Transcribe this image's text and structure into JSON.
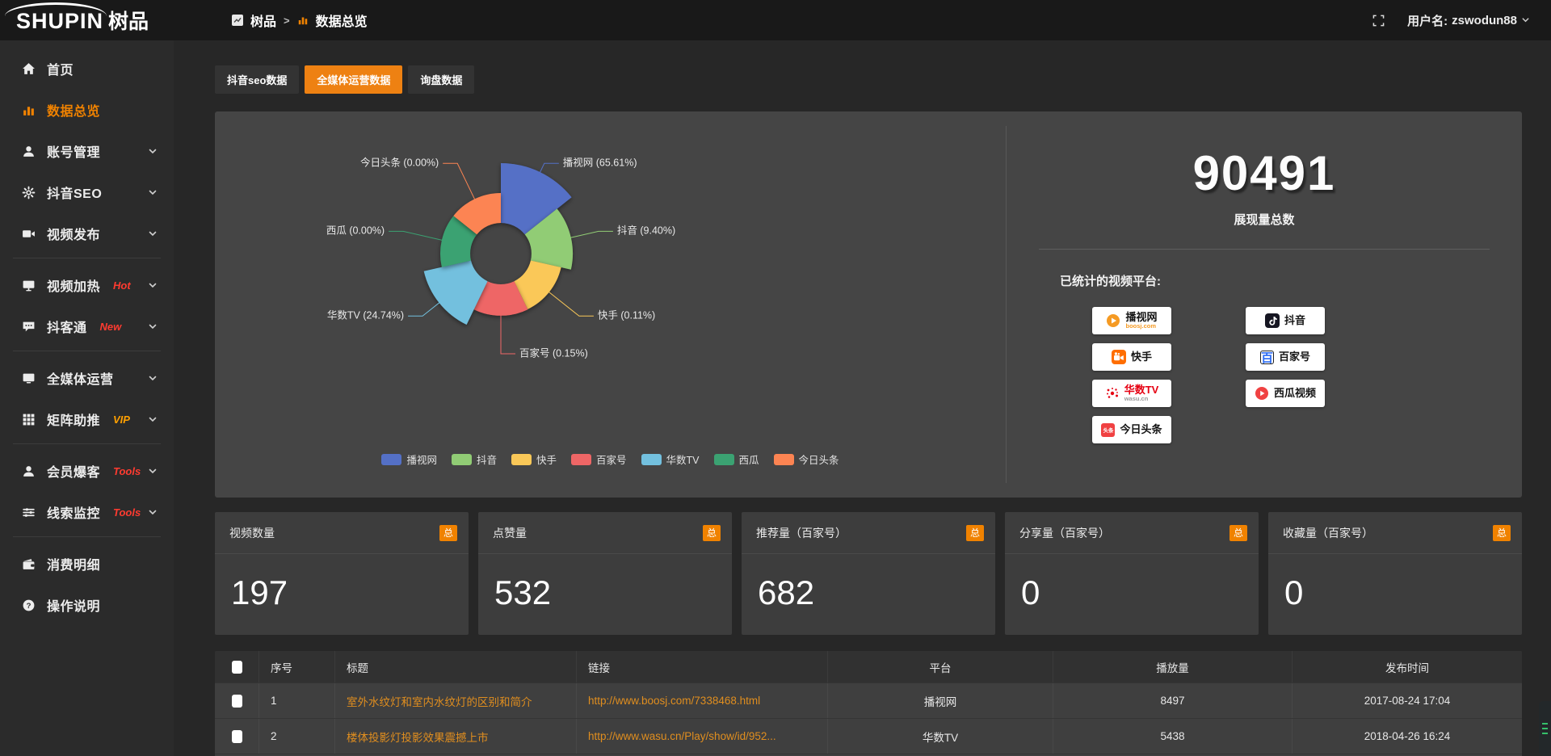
{
  "app": {
    "logo_en": "SHUPIN",
    "logo_cn": "树品",
    "user_prefix": "用户名:",
    "username": "zswodun88",
    "accent_color": "#f08200"
  },
  "breadcrumb": {
    "root": "树品",
    "separator": ">",
    "current": "数据总览"
  },
  "sidebar": {
    "items": [
      {
        "key": "home",
        "label": "首页",
        "icon": "home-icon"
      },
      {
        "key": "data-overview",
        "label": "数据总览",
        "icon": "bar-chart-icon",
        "active": true
      },
      {
        "key": "account-manage",
        "label": "账号管理",
        "icon": "user-icon",
        "chevron": true
      },
      {
        "key": "douyin-seo",
        "label": "抖音SEO",
        "icon": "gear-icon",
        "chevron": true
      },
      {
        "key": "video-publish",
        "label": "视频发布",
        "icon": "video-icon",
        "chevron": true
      },
      {
        "divider": true
      },
      {
        "key": "video-heat",
        "label": "视频加热",
        "icon": "screen-icon",
        "chevron": true,
        "tag": "Hot",
        "tag_color": "#ff3b30"
      },
      {
        "key": "douketong",
        "label": "抖客通",
        "icon": "chat-icon",
        "chevron": true,
        "tag": "New",
        "tag_color": "#ff3b30"
      },
      {
        "divider": true
      },
      {
        "key": "media-ops",
        "label": "全媒体运营",
        "icon": "monitor-icon",
        "chevron": true
      },
      {
        "key": "matrix-boost",
        "label": "矩阵助推",
        "icon": "grid-icon",
        "chevron": true,
        "tag": "VIP",
        "tag_color": "#ffa000"
      },
      {
        "divider": true
      },
      {
        "key": "member-burst",
        "label": "会员爆客",
        "icon": "member-icon",
        "chevron": true,
        "tag": "Tools",
        "tag_color": "#ff3b30"
      },
      {
        "key": "clue-monitor",
        "label": "线索监控",
        "icon": "filter-icon",
        "chevron": true,
        "tag": "Tools",
        "tag_color": "#ff3b30"
      },
      {
        "divider": true
      },
      {
        "key": "expense-detail",
        "label": "消费明细",
        "icon": "wallet-icon"
      },
      {
        "key": "help",
        "label": "操作说明",
        "icon": "help-icon"
      }
    ]
  },
  "tabs": [
    {
      "key": "douyin-seo-data",
      "label": "抖音seo数据",
      "active": false
    },
    {
      "key": "media-ops-data",
      "label": "全媒体运营数据",
      "active": true
    },
    {
      "key": "inquiry-data",
      "label": "询盘数据",
      "active": false
    }
  ],
  "chart_data": {
    "type": "pie",
    "variant": "nightingale_rose",
    "unit": "%",
    "label_format": "{name} ({value}%)",
    "legend_position": "bottom",
    "items": [
      {
        "name": "播视网",
        "value": 65.61,
        "color": "#5470c6"
      },
      {
        "name": "抖音",
        "value": 9.4,
        "color": "#91cc75"
      },
      {
        "name": "快手",
        "value": 0.11,
        "color": "#fac858"
      },
      {
        "name": "百家号",
        "value": 0.15,
        "color": "#ee6666"
      },
      {
        "name": "华数TV",
        "value": 24.74,
        "color": "#73c0de"
      },
      {
        "name": "西瓜",
        "value": 0.0,
        "color": "#3ba272"
      },
      {
        "name": "今日头条",
        "value": 0.0,
        "color": "#fc8452"
      }
    ]
  },
  "summary": {
    "total_value": "90491",
    "total_label": "展现量总数",
    "platforms_title": "已统计的视频平台:",
    "platforms": [
      {
        "key": "boosj",
        "name": "播视网",
        "sub": "boosj.com",
        "sub_color": "#f59a23",
        "logo": "boosj-logo",
        "col": 1
      },
      {
        "key": "douyin",
        "name": "抖音",
        "logo": "douyin-logo",
        "col": 2
      },
      {
        "key": "kuaishou",
        "name": "快手",
        "logo": "kuaishou-logo",
        "col": 1
      },
      {
        "key": "baijiahao",
        "name": "百家号",
        "logo": "baijiahao-logo",
        "col": 2
      },
      {
        "key": "wasu",
        "name": "华数TV",
        "name_color": "#e60012",
        "sub": "wasu.cn",
        "sub_color": "#999999",
        "logo": "wasu-logo",
        "col": 1
      },
      {
        "key": "xigua",
        "name": "西瓜视频",
        "logo": "xigua-logo",
        "col": 2
      },
      {
        "key": "toutiao",
        "name": "今日头条",
        "logo": "toutiao-logo",
        "col": 1
      }
    ]
  },
  "stat_cards": [
    {
      "key": "video-count",
      "title": "视频数量",
      "badge": "总",
      "value": "197"
    },
    {
      "key": "likes",
      "title": "点赞量",
      "badge": "总",
      "value": "532"
    },
    {
      "key": "recommends",
      "title": "推荐量（百家号）",
      "badge": "总",
      "value": "682"
    },
    {
      "key": "shares",
      "title": "分享量（百家号）",
      "badge": "总",
      "value": "0"
    },
    {
      "key": "favorites",
      "title": "收藏量（百家号）",
      "badge": "总",
      "value": "0"
    }
  ],
  "table": {
    "headers": [
      "序号",
      "标题",
      "链接",
      "平台",
      "播放量",
      "发布时间"
    ],
    "rows": [
      [
        "1",
        "室外水纹灯和室内水纹灯的区别和简介",
        "http://www.boosj.com/7338468.html",
        "播视网",
        "8497",
        "2017-08-24 17:04"
      ],
      [
        "2",
        "楼体投影灯投影效果震撼上市",
        "http://www.wasu.cn/Play/show/id/952...",
        "华数TV",
        "5438",
        "2018-04-26 16:24"
      ]
    ]
  }
}
